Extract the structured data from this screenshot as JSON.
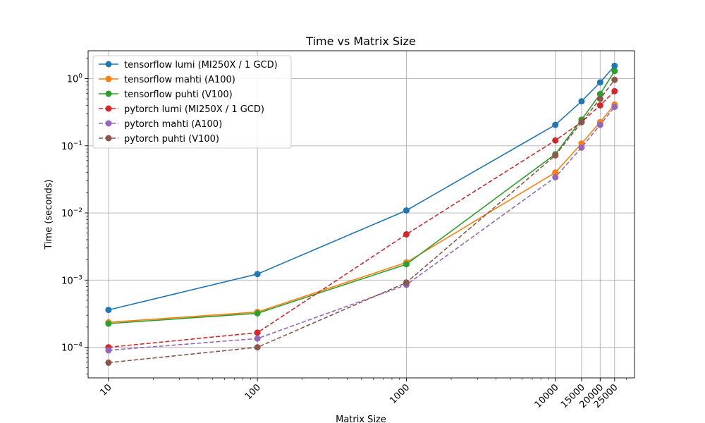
{
  "chart_data": {
    "type": "line",
    "title": "Time vs Matrix Size",
    "xlabel": "Matrix Size",
    "ylabel": "Time (seconds)",
    "xscale": "log",
    "yscale": "log",
    "xlim": [
      7.3,
      34000
    ],
    "ylim": [
      3.5e-05,
      2.6
    ],
    "grid": true,
    "legend_position": "top-left",
    "x_ticks": [
      {
        "value": 10,
        "label": "10"
      },
      {
        "value": 100,
        "label": "100"
      },
      {
        "value": 1000,
        "label": "1000"
      },
      {
        "value": 10000,
        "label": "10000"
      },
      {
        "value": 15000,
        "label": "15000"
      },
      {
        "value": 20000,
        "label": "20000"
      },
      {
        "value": 25000,
        "label": "25000"
      }
    ],
    "y_ticks": [
      {
        "value": 0.0001,
        "mant": "10",
        "exp": "−4"
      },
      {
        "value": 0.001,
        "mant": "10",
        "exp": "−3"
      },
      {
        "value": 0.01,
        "mant": "10",
        "exp": "−2"
      },
      {
        "value": 0.1,
        "mant": "10",
        "exp": "−1"
      },
      {
        "value": 1,
        "mant": "10",
        "exp": "0"
      }
    ],
    "x": [
      10,
      100,
      1000,
      10000,
      15000,
      20000,
      25000
    ],
    "series": [
      {
        "name": "tensorflow lumi (MI250X / 1 GCD)",
        "color": "#1f77b4",
        "dashed": false,
        "values": [
          0.00036,
          0.00123,
          0.0109,
          0.205,
          0.46,
          0.88,
          1.55
        ]
      },
      {
        "name": "tensorflow mahti (A100)",
        "color": "#ff7f0e",
        "dashed": false,
        "values": [
          0.000235,
          0.000335,
          0.00183,
          0.04,
          0.108,
          0.225,
          0.41
        ]
      },
      {
        "name": "tensorflow puhti (V100)",
        "color": "#2ca02c",
        "dashed": false,
        "values": [
          0.000225,
          0.00032,
          0.00172,
          0.075,
          0.245,
          0.59,
          1.3
        ]
      },
      {
        "name": "pytorch lumi (MI250X / 1 GCD)",
        "color": "#d62728",
        "dashed": true,
        "values": [
          0.0001,
          0.000165,
          0.0048,
          0.12,
          0.225,
          0.4,
          0.65
        ]
      },
      {
        "name": "pytorch mahti (A100)",
        "color": "#9467bd",
        "dashed": true,
        "values": [
          9e-05,
          0.000135,
          0.00085,
          0.034,
          0.094,
          0.205,
          0.38
        ]
      },
      {
        "name": "pytorch puhti (V100)",
        "color": "#8c564b",
        "dashed": true,
        "values": [
          5.9e-05,
          0.0001,
          0.00092,
          0.072,
          0.225,
          0.5,
          0.96
        ]
      }
    ]
  }
}
